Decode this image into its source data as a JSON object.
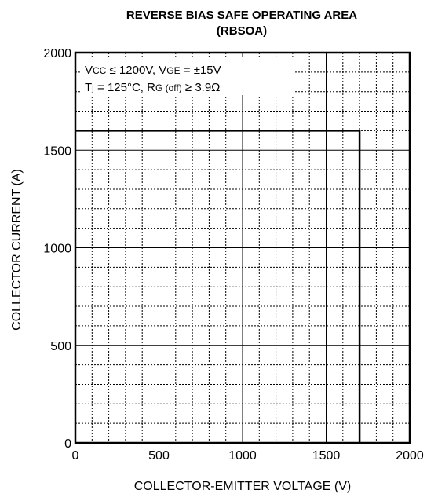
{
  "chart_data": {
    "type": "line",
    "title": "REVERSE BIAS SAFE OPERATING AREA",
    "subtitle": "(RBSOA)",
    "xlabel": "COLLECTOR-EMITTER VOLTAGE (V)",
    "ylabel": "COLLECTOR CURRENT (A)",
    "xlim": [
      0,
      2000
    ],
    "ylim": [
      0,
      2000
    ],
    "x_ticks": [
      0,
      500,
      1000,
      1500,
      2000
    ],
    "y_ticks": [
      0,
      500,
      1000,
      1500,
      2000
    ],
    "x_tick_labels": [
      "0",
      "500",
      "1000",
      "1500",
      "2000"
    ],
    "y_tick_labels": [
      "0",
      "500",
      "1000",
      "1500",
      "2000"
    ],
    "major_grid": true,
    "minor_grid": true,
    "minor_grid_step": 100,
    "series": [
      {
        "x": [
          0,
          1700,
          1700
        ],
        "y": [
          1600,
          1600,
          0
        ]
      }
    ],
    "annotations": {
      "line1": {
        "v": "V",
        "vsub": "CC",
        "mid": " ≤ 1200V, V",
        "gsub": "GE",
        "end": " = ±15V"
      },
      "line2": {
        "t": "T",
        "tsub": "j",
        "mid": " = 125°C, R",
        "rsub": "G (off)",
        "end": " ≥ 3.9Ω"
      }
    }
  }
}
